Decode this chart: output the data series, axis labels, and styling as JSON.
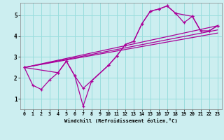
{
  "xlabel": "Windchill (Refroidissement éolien,°C)",
  "background_color": "#cceef0",
  "grid_color": "#99dddd",
  "line_color": "#aa0099",
  "xlim": [
    -0.5,
    23.5
  ],
  "ylim": [
    0.5,
    5.6
  ],
  "xticks": [
    0,
    1,
    2,
    3,
    4,
    5,
    6,
    7,
    8,
    9,
    10,
    11,
    12,
    13,
    14,
    15,
    16,
    17,
    18,
    19,
    20,
    21,
    22,
    23
  ],
  "yticks": [
    1,
    2,
    3,
    4,
    5
  ],
  "series1_x": [
    0,
    1,
    2,
    3,
    4,
    5,
    6,
    7,
    8,
    10,
    11,
    12,
    13,
    14,
    15,
    16,
    17,
    18,
    19,
    20,
    21,
    22,
    23
  ],
  "series1_y": [
    2.5,
    1.65,
    1.45,
    1.9,
    2.25,
    2.8,
    2.1,
    0.65,
    1.85,
    2.6,
    3.05,
    3.6,
    3.75,
    4.6,
    5.2,
    5.3,
    5.45,
    5.1,
    4.65,
    4.95,
    4.25,
    4.25,
    4.5
  ],
  "series2_x": [
    0,
    4,
    5,
    6,
    7,
    10,
    11,
    12,
    13,
    14,
    15,
    16,
    17,
    18,
    20,
    21,
    22,
    23
  ],
  "series2_y": [
    2.5,
    2.25,
    2.8,
    2.1,
    1.5,
    2.6,
    3.05,
    3.6,
    3.75,
    4.6,
    5.2,
    5.3,
    5.45,
    5.1,
    4.95,
    4.25,
    4.25,
    4.5
  ],
  "trend1_x": [
    0,
    23
  ],
  "trend1_y": [
    2.5,
    4.5
  ],
  "trend2_x": [
    0,
    23
  ],
  "trend2_y": [
    2.5,
    4.3
  ],
  "trend3_x": [
    0,
    23
  ],
  "trend3_y": [
    2.5,
    4.15
  ]
}
